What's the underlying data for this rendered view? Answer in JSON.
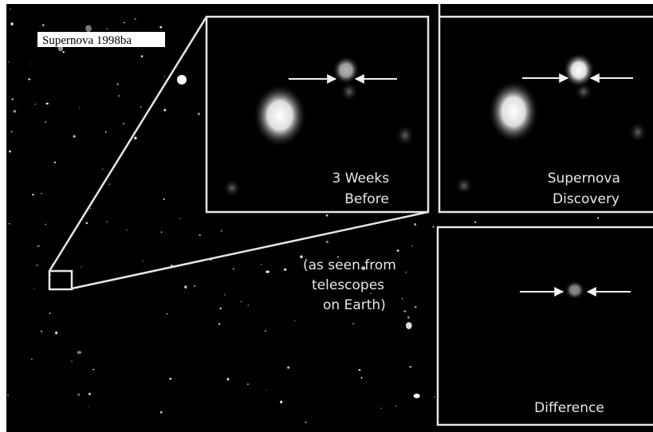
{
  "title": "Supernova 1998ba",
  "panels": [
    {
      "lines": [
        "3 Weeks",
        "Before"
      ]
    },
    {
      "lines": [
        "Supernova",
        "Discovery"
      ]
    },
    {
      "lines": [
        "Difference"
      ]
    }
  ],
  "note": {
    "lines": [
      "(as seen from",
      "telescopes",
      "on Earth)"
    ]
  }
}
